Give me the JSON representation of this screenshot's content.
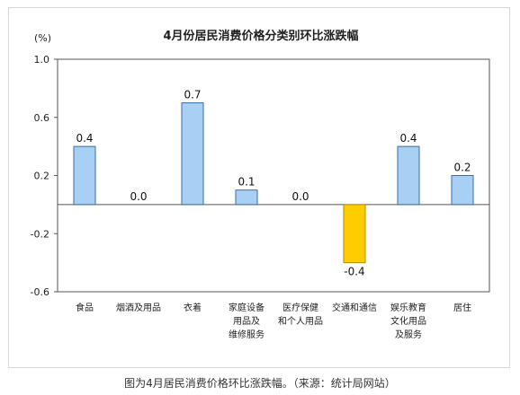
{
  "chart_data": {
    "type": "bar",
    "title": "4月份居民消费价格分类别环比涨跌幅",
    "unit_label": "(%)",
    "categories": [
      [
        "食品"
      ],
      [
        "烟酒及用品"
      ],
      [
        "衣着"
      ],
      [
        "家庭设备",
        "用品及",
        "维修服务"
      ],
      [
        "医疗保健",
        "和个人用品"
      ],
      [
        "交通和通信"
      ],
      [
        "娱乐教育",
        "文化用品",
        "及服务"
      ],
      [
        "居住"
      ]
    ],
    "values": [
      0.4,
      0.0,
      0.7,
      0.1,
      0.0,
      -0.4,
      0.4,
      0.2
    ],
    "value_labels": [
      "0.4",
      "0.0",
      "0.7",
      "0.1",
      "0.0",
      "-0.4",
      "0.4",
      "0.2"
    ],
    "yticks": [
      "1.0",
      "0.6",
      "0.2",
      "-0.2",
      "-0.6"
    ],
    "ylim": [
      -0.6,
      1.0
    ],
    "grid": false,
    "colors": {
      "positive": "#a8d0f5",
      "negative": "#ffcc00",
      "bar_stroke": "#3a6ea5",
      "neg_stroke": "#b38f00"
    }
  },
  "caption": "图为4月居民消费价格环比涨跌幅。（来源：统计局网站）"
}
